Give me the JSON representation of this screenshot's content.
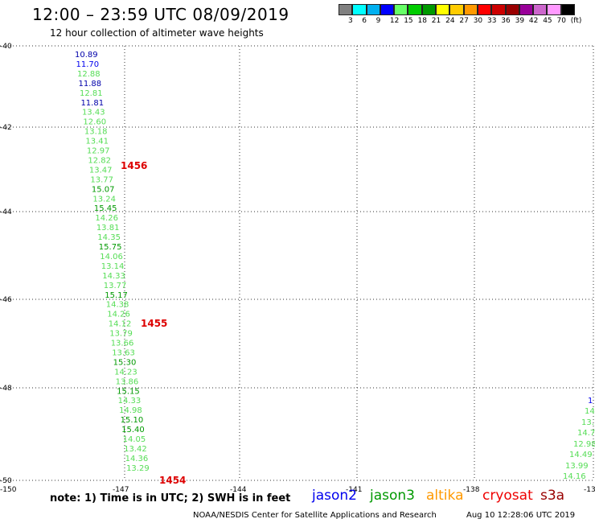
{
  "header": {
    "title": "12:00 – 23:59 UTC 08/09/2019",
    "subtitle": "12 hour collection of altimeter wave heights"
  },
  "legend": {
    "colors": [
      "#808080",
      "#00ffff",
      "#00b0f0",
      "#0000ff",
      "#66ff66",
      "#00cc00",
      "#009900",
      "#ffff00",
      "#ffcc00",
      "#ff9900",
      "#ff0000",
      "#cc0000",
      "#990000",
      "#990099",
      "#cc66cc",
      "#ff99ff",
      "#000000"
    ],
    "labels": [
      "3",
      "6",
      "9",
      "12",
      "15",
      "18",
      "21",
      "24",
      "27",
      "30",
      "33",
      "36",
      "39",
      "42",
      "45",
      "70",
      "(ft)"
    ]
  },
  "map": {
    "lat_labels": [
      "-40",
      "-42",
      "-44",
      "-46",
      "-48",
      "-50"
    ],
    "lon_labels": [
      "-150",
      "-147",
      "-144",
      "-141",
      "-138",
      "-13"
    ],
    "track1": {
      "values": [
        "10.89",
        "11.70",
        "12.88",
        "11.88",
        "12.81",
        "11.81",
        "13.43",
        "12.60",
        "13.18",
        "13.41",
        "12.97",
        "12.82",
        "13.47",
        "13.77",
        "15.07",
        "13.24",
        "15.45",
        "14.26",
        "13.81",
        "14.35",
        "15.75",
        "14.06",
        "13.14",
        "14.33",
        "13.77",
        "15.17",
        "14.38",
        "14.26",
        "14.12",
        "13.79",
        "13.66",
        "13.63",
        "15.30",
        "14.23",
        "13.86",
        "15.15",
        "14.33",
        "14.98",
        "15.10",
        "15.40",
        "14.05",
        "13.42",
        "14.36",
        "13.29"
      ],
      "colors": [
        "#0000aa",
        "#0000ee",
        "#55dd55",
        "#0000aa",
        "#55dd55",
        "#0000aa",
        "#55dd55",
        "#55dd55",
        "#55dd55",
        "#55dd55",
        "#55dd55",
        "#55dd55",
        "#55dd55",
        "#55dd55",
        "#009900",
        "#55dd55",
        "#009900",
        "#55dd55",
        "#55dd55",
        "#55dd55",
        "#009900",
        "#55dd55",
        "#55dd55",
        "#55dd55",
        "#55dd55",
        "#009900",
        "#55dd55",
        "#55dd55",
        "#55dd55",
        "#55dd55",
        "#55dd55",
        "#55dd55",
        "#009900",
        "#55dd55",
        "#55dd55",
        "#009900",
        "#55dd55",
        "#55dd55",
        "#009900",
        "#009900",
        "#55dd55",
        "#55dd55",
        "#55dd55",
        "#55dd55"
      ]
    },
    "times": [
      "1456",
      "1455",
      "1454"
    ],
    "track2": {
      "values": [
        "1",
        "14",
        "13.",
        "14.7",
        "12.98",
        "14.49",
        "13.99",
        "14.16"
      ],
      "colors": [
        "#0000ee",
        "#55dd55",
        "#55dd55",
        "#55dd55",
        "#55dd55",
        "#55dd55",
        "#55dd55",
        "#55dd55"
      ]
    }
  },
  "footer": {
    "note": "note: 1) Time is in UTC; 2) SWH is in feet",
    "satellites": [
      {
        "name": "jason2",
        "color": "#0000ee"
      },
      {
        "name": "jason3",
        "color": "#009900"
      },
      {
        "name": "altika",
        "color": "#ff9900"
      },
      {
        "name": "cryosat",
        "color": "#ee0000"
      },
      {
        "name": "s3a",
        "color": "#990000"
      }
    ],
    "credit": "NOAA/NESDIS Center for Satellite Applications and Research",
    "timestamp": "Aug 10 12:28:06 UTC 2019"
  }
}
